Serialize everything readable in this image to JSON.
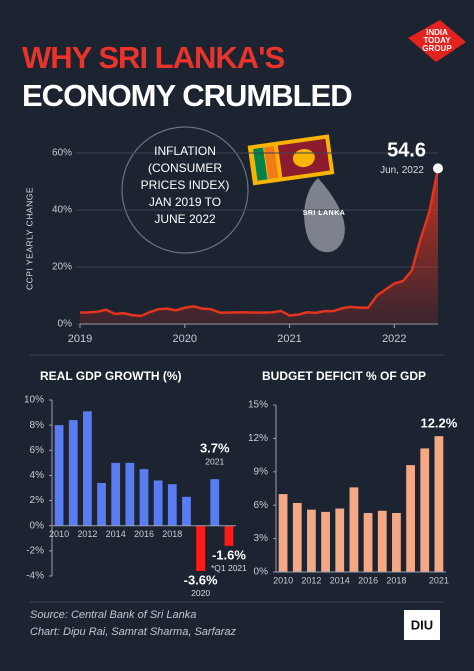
{
  "header": {
    "title_line1": "WHY SRI LANKA'S",
    "title_line2": "ECONOMY CRUMBLED",
    "logo_lines": [
      "INDIA",
      "TODAY",
      "GROUP"
    ]
  },
  "chart_data": [
    {
      "type": "area",
      "y_label": "CCPI YEARLY CHANGE",
      "annotation_lines": [
        "INFLATION",
        "(CONSUMER",
        "PRICES INDEX)",
        "JAN 2019 TO",
        "JUNE 2022"
      ],
      "peak_note": "Jun, 2022",
      "map_label": "SRI LANKA",
      "color": "#e2341f",
      "grid": true,
      "x": [
        2019,
        2019.083,
        2019.167,
        2019.25,
        2019.333,
        2019.417,
        2019.5,
        2019.583,
        2019.667,
        2019.75,
        2019.833,
        2019.917,
        2020,
        2020.083,
        2020.167,
        2020.25,
        2020.333,
        2020.417,
        2020.5,
        2020.583,
        2020.667,
        2020.75,
        2020.833,
        2020.917,
        2021,
        2021.083,
        2021.167,
        2021.25,
        2021.333,
        2021.417,
        2021.5,
        2021.583,
        2021.667,
        2021.75,
        2021.833,
        2021.917,
        2022,
        2022.083,
        2022.167,
        2022.25,
        2022.333,
        2022.417
      ],
      "values": [
        4.0,
        4.1,
        4.3,
        5.0,
        3.5,
        3.8,
        3.1,
        2.8,
        4.2,
        5.2,
        5.4,
        4.8,
        5.7,
        6.2,
        5.4,
        5.2,
        4.0,
        4.0,
        4.1,
        4.1,
        4.0,
        4.0,
        4.1,
        4.6,
        3.0,
        3.3,
        4.1,
        3.9,
        4.5,
        4.5,
        5.5,
        6.0,
        5.7,
        5.7,
        9.9,
        12.1,
        14.2,
        15.1,
        18.7,
        29.8,
        39.1,
        54.6
      ],
      "xlim": [
        2019,
        2022.417
      ],
      "xticks": [
        2019,
        2020,
        2021,
        2022
      ],
      "ylim": [
        0,
        60
      ],
      "yticks": [
        {
          "value": 0,
          "label": "0%"
        },
        {
          "value": 20,
          "label": "20%"
        },
        {
          "value": 40,
          "label": "40%"
        },
        {
          "value": 60,
          "label": "60%"
        }
      ]
    },
    {
      "type": "bar",
      "title": "REAL GDP GROWTH (%)",
      "categories": [
        "2010",
        null,
        "2012",
        null,
        "2014",
        null,
        "2016",
        null,
        "2018",
        null,
        "2020",
        "2021",
        "*Q1 2021"
      ],
      "values": [
        8.0,
        8.4,
        9.1,
        3.4,
        5.0,
        5.0,
        4.5,
        3.6,
        3.3,
        2.3,
        -3.6,
        3.7,
        -1.6
      ],
      "value_labels": [
        null,
        null,
        null,
        null,
        null,
        null,
        null,
        null,
        null,
        null,
        "-3.6%",
        "3.7%",
        "-1.6%"
      ],
      "colors": [
        "#5a7cf2",
        "#5a7cf2",
        "#5a7cf2",
        "#5a7cf2",
        "#5a7cf2",
        "#5a7cf2",
        "#5a7cf2",
        "#5a7cf2",
        "#5a7cf2",
        "#5a7cf2",
        "#ff1a1a",
        "#5a7cf2",
        "#ff1a1a"
      ],
      "grid": false,
      "ylim": [
        -4,
        10
      ],
      "yticks": [
        {
          "value": -4,
          "label": "-4%"
        },
        {
          "value": -2,
          "label": "-2%"
        },
        {
          "value": 0,
          "label": "0%"
        },
        {
          "value": 2,
          "label": "2%"
        },
        {
          "value": 4,
          "label": "4%"
        },
        {
          "value": 6,
          "label": "6%"
        },
        {
          "value": 8,
          "label": "8%"
        },
        {
          "value": 10,
          "label": "10%"
        }
      ]
    },
    {
      "type": "bar",
      "title": "BUDGET DEFICIT % OF GDP",
      "categories": [
        "2010",
        null,
        "2012",
        null,
        "2014",
        null,
        "2016",
        null,
        "2018",
        null,
        null,
        "2021"
      ],
      "values": [
        7.0,
        6.2,
        5.6,
        5.4,
        5.7,
        7.6,
        5.3,
        5.5,
        5.3,
        9.6,
        11.1,
        12.2
      ],
      "value_labels": [
        null,
        null,
        null,
        null,
        null,
        null,
        null,
        null,
        null,
        null,
        null,
        "12.2%"
      ],
      "color": "#f4a886",
      "grid": false,
      "ylim": [
        0,
        15
      ],
      "yticks": [
        {
          "value": 0,
          "label": "0%"
        },
        {
          "value": 3,
          "label": "3%"
        },
        {
          "value": 6,
          "label": "6%"
        },
        {
          "value": 9,
          "label": "9%"
        },
        {
          "value": 12,
          "label": "12%"
        },
        {
          "value": 15,
          "label": "15%"
        }
      ]
    }
  ],
  "footer": {
    "source": "Source: Central Bank of Sri Lanka",
    "credit": "Chart: Dipu Rai, Samrat Sharma, Sarfaraz",
    "logo": "DIU"
  }
}
